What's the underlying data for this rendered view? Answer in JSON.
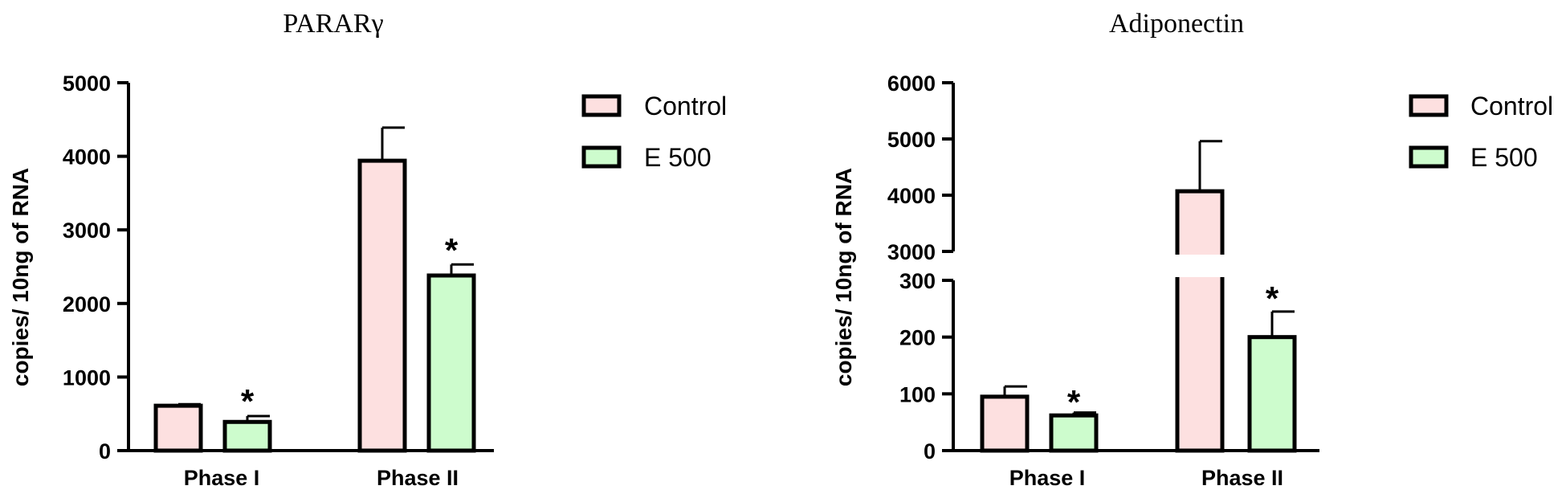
{
  "colors": {
    "control": "#fde0e0",
    "e500": "#cdfccd",
    "stroke": "#000000"
  },
  "chart_data": [
    {
      "type": "bar",
      "title": "PARARγ",
      "ylabel": "copies/ 10ng of RNA",
      "categories": [
        "Phase I",
        "Phase II"
      ],
      "ylim": [
        0,
        5000
      ],
      "yticks": [
        "0",
        "1000",
        "2000",
        "3000",
        "4000",
        "5000"
      ],
      "series": [
        {
          "name": "Control",
          "values": [
            610,
            3940
          ],
          "errors": [
            20,
            450
          ],
          "significant": [
            false,
            false
          ]
        },
        {
          "name": "E 500",
          "values": [
            390,
            2380
          ],
          "errors": [
            80,
            150
          ],
          "significant": [
            true,
            true
          ]
        }
      ],
      "significance_marker": "*",
      "legend": "top-right"
    },
    {
      "type": "bar",
      "title": "Adiponectin",
      "ylabel": "copies/ 10ng of RNA",
      "categories": [
        "Phase I",
        "Phase II"
      ],
      "axis_break": {
        "lower": [
          0,
          300
        ],
        "upper": [
          3000,
          6000
        ]
      },
      "yticks_lower": [
        "0",
        "100",
        "200",
        "300"
      ],
      "yticks_upper": [
        "3000",
        "4000",
        "5000",
        "6000"
      ],
      "series": [
        {
          "name": "Control",
          "values": [
            95,
            4070
          ],
          "errors": [
            18,
            890
          ],
          "significant": [
            false,
            false
          ]
        },
        {
          "name": "E 500",
          "values": [
            62,
            200
          ],
          "errors": [
            5,
            45
          ],
          "significant": [
            true,
            true
          ]
        }
      ],
      "significance_marker": "*",
      "legend": "top-right"
    }
  ]
}
